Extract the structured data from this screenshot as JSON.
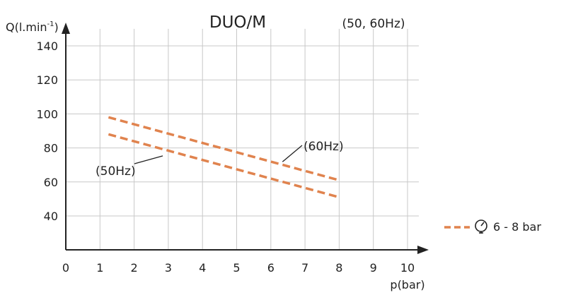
{
  "chart_data": {
    "type": "line",
    "title": "DUO/M",
    "subtitle": "(50, 60Hz)",
    "ylabel": "Q(l.min",
    "ylabel_sup": "-1",
    "ylabel_close": ")",
    "xlabel": "p(bar)",
    "xlim": [
      0,
      10
    ],
    "ylim": [
      20,
      150
    ],
    "x_ticks": [
      "0",
      "1",
      "2",
      "3",
      "4",
      "5",
      "6",
      "7",
      "8",
      "9",
      "10"
    ],
    "y_ticks": [
      "40",
      "60",
      "80",
      "100",
      "120",
      "140"
    ],
    "grid": true,
    "series": [
      {
        "x": [
          1.25,
          8.0
        ],
        "y": [
          98,
          61
        ]
      },
      {
        "x": [
          1.25,
          8.0
        ],
        "y": [
          88,
          51
        ]
      }
    ],
    "annotations": [
      {
        "text": "(60Hz)",
        "points_to": [
          6.3,
          71
        ]
      },
      {
        "text": "(50Hz)",
        "points_to": [
          2.9,
          77
        ]
      }
    ],
    "line_color": "#e0834e",
    "legend": {
      "label": "6 - 8 bar",
      "icon": "pressure-gauge-icon",
      "position": "right"
    }
  }
}
